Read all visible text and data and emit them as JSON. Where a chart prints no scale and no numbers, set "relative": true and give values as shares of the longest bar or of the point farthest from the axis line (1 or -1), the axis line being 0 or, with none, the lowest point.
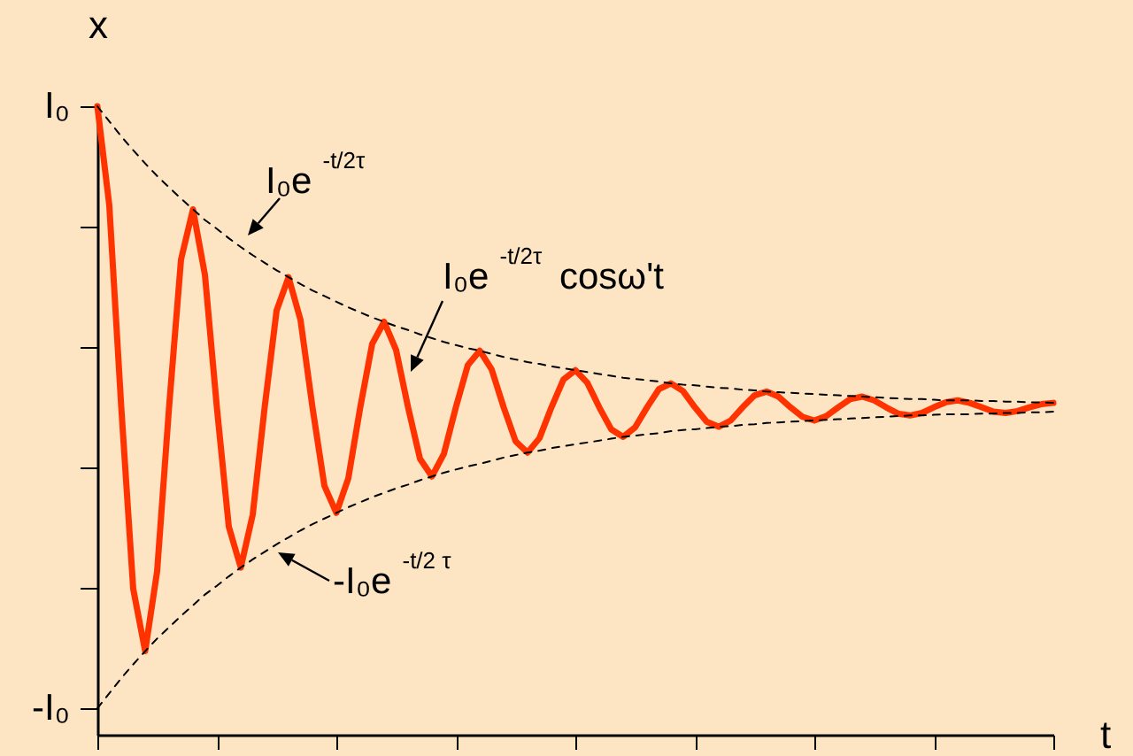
{
  "chart_data": {
    "type": "line",
    "xlabel": "t",
    "ylabel": "x",
    "tick_labels": "y",
    "relative": true,
    "categories": [
      null,
      null,
      null,
      null,
      null,
      null,
      null,
      null,
      null,
      null,
      null,
      null,
      null,
      null,
      null,
      null,
      null,
      null,
      null,
      null,
      null,
      null,
      null,
      null,
      null,
      null,
      null,
      null,
      null,
      null,
      null,
      null,
      null,
      null,
      null,
      null,
      null,
      null,
      null,
      null,
      null,
      null,
      null,
      null,
      null,
      null,
      null,
      null,
      null,
      null,
      null,
      null,
      null,
      null,
      null,
      null,
      null,
      null,
      null,
      null,
      null,
      null,
      null,
      null,
      null,
      null,
      null,
      null,
      null,
      null,
      null,
      null,
      null,
      null,
      null,
      null,
      null,
      null,
      null,
      null,
      null
    ],
    "series": [
      {
        "color": "#ff3300",
        "line_style": "solid",
        "values": [
          1.0,
          0.842,
          0.521,
          0.232,
          0.133,
          0.26,
          0.521,
          0.756,
          0.836,
          0.732,
          0.521,
          0.331,
          0.266,
          0.35,
          0.521,
          0.675,
          0.728,
          0.66,
          0.521,
          0.396,
          0.353,
          0.408,
          0.521,
          0.622,
          0.657,
          0.612,
          0.521,
          0.439,
          0.411,
          0.447,
          0.521,
          0.588,
          0.611,
          0.581,
          0.521,
          0.467,
          0.449,
          0.472,
          0.521,
          0.565,
          0.58,
          0.56,
          0.521,
          0.486,
          0.474,
          0.489,
          0.521,
          0.55,
          0.559,
          0.547,
          0.521,
          0.498,
          0.49,
          0.5,
          0.521,
          0.54,
          0.546,
          0.538,
          0.521,
          0.506,
          0.5,
          0.507,
          0.521,
          0.534,
          0.538,
          0.532,
          0.521,
          0.511,
          0.508,
          0.512,
          0.521,
          0.529,
          0.532,
          0.528,
          0.521,
          0.514,
          0.512,
          0.515,
          0.521,
          0.526,
          0.528
        ]
      },
      {
        "color": "#000000",
        "line_style": "dashed",
        "values": [
          1.0,
          0.976,
          0.952,
          0.93,
          0.909,
          0.889,
          0.871,
          0.853,
          0.836,
          0.819,
          0.805,
          0.79,
          0.776,
          0.763,
          0.751,
          0.739,
          0.728,
          0.717,
          0.707,
          0.698,
          0.689,
          0.68,
          0.672,
          0.664,
          0.657,
          0.65,
          0.644,
          0.637,
          0.631,
          0.625,
          0.62,
          0.615,
          0.611,
          0.606,
          0.601,
          0.597,
          0.593,
          0.59,
          0.586,
          0.583,
          0.58,
          0.577,
          0.574,
          0.571,
          0.568,
          0.566,
          0.564,
          0.562,
          0.559,
          0.557,
          0.556,
          0.554,
          0.552,
          0.551,
          0.549,
          0.548,
          0.546,
          0.545,
          0.544,
          0.543,
          0.542,
          0.541,
          0.54,
          0.539,
          0.538,
          0.537,
          0.536,
          0.535,
          0.534,
          0.534,
          0.533,
          0.532,
          0.532,
          0.532,
          0.531,
          0.531,
          0.53,
          0.53,
          0.529,
          0.529,
          0.528
        ]
      },
      {
        "color": "#000000",
        "line_style": "dashed",
        "values": [
          0.042,
          0.066,
          0.09,
          0.112,
          0.133,
          0.153,
          0.171,
          0.189,
          0.206,
          0.223,
          0.237,
          0.252,
          0.266,
          0.279,
          0.291,
          0.303,
          0.314,
          0.325,
          0.335,
          0.344,
          0.353,
          0.362,
          0.37,
          0.378,
          0.385,
          0.392,
          0.398,
          0.405,
          0.411,
          0.417,
          0.422,
          0.427,
          0.431,
          0.436,
          0.441,
          0.445,
          0.449,
          0.452,
          0.456,
          0.459,
          0.462,
          0.465,
          0.468,
          0.471,
          0.474,
          0.476,
          0.478,
          0.48,
          0.483,
          0.485,
          0.486,
          0.488,
          0.49,
          0.491,
          0.493,
          0.494,
          0.496,
          0.497,
          0.498,
          0.499,
          0.5,
          0.501,
          0.502,
          0.503,
          0.504,
          0.505,
          0.506,
          0.507,
          0.508,
          0.508,
          0.509,
          0.51,
          0.51,
          0.51,
          0.511,
          0.511,
          0.512,
          0.512,
          0.513,
          0.513,
          0.514
        ]
      }
    ],
    "annotations": [
      "I₀",
      "I₀e$^{-t/2τ}$",
      "I₀e$^{-t/2τ}$ cosω't",
      "-I₀e$^{-t/2 τ}$",
      "-I₀"
    ]
  }
}
